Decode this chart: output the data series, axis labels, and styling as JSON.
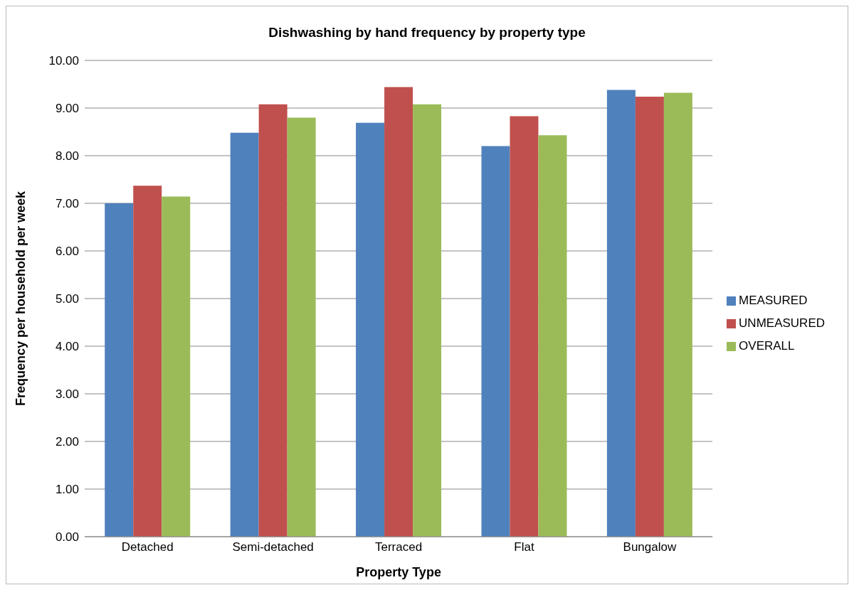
{
  "chart_data": {
    "type": "bar",
    "title": "Dishwashing by hand frequency by property type",
    "xlabel": "Property Type",
    "ylabel": "Frequency per household  per week",
    "categories": [
      "Detached",
      "Semi-detached",
      "Terraced",
      "Flat",
      "Bungalow"
    ],
    "series": [
      {
        "name": "MEASURED",
        "color": "#4f81bd",
        "values": [
          7.0,
          8.48,
          8.69,
          8.2,
          9.38
        ]
      },
      {
        "name": "UNMEASURED",
        "color": "#c0504d",
        "values": [
          7.37,
          9.08,
          9.44,
          8.83,
          9.24
        ]
      },
      {
        "name": "OVERALL",
        "color": "#9bbb59",
        "values": [
          7.14,
          8.8,
          9.08,
          8.43,
          9.32
        ]
      }
    ],
    "ylim": [
      0,
      10
    ],
    "yticks": [
      {
        "value": 0,
        "label": "0.00"
      },
      {
        "value": 1,
        "label": "1.00"
      },
      {
        "value": 2,
        "label": "2.00"
      },
      {
        "value": 3,
        "label": "3.00"
      },
      {
        "value": 4,
        "label": "4.00"
      },
      {
        "value": 5,
        "label": "5.00"
      },
      {
        "value": 6,
        "label": "6.00"
      },
      {
        "value": 7,
        "label": "7.00"
      },
      {
        "value": 8,
        "label": "8.00"
      },
      {
        "value": 9,
        "label": "9.00"
      },
      {
        "value": 10,
        "label": "10.00"
      }
    ],
    "grid": "y",
    "legend": "right"
  }
}
